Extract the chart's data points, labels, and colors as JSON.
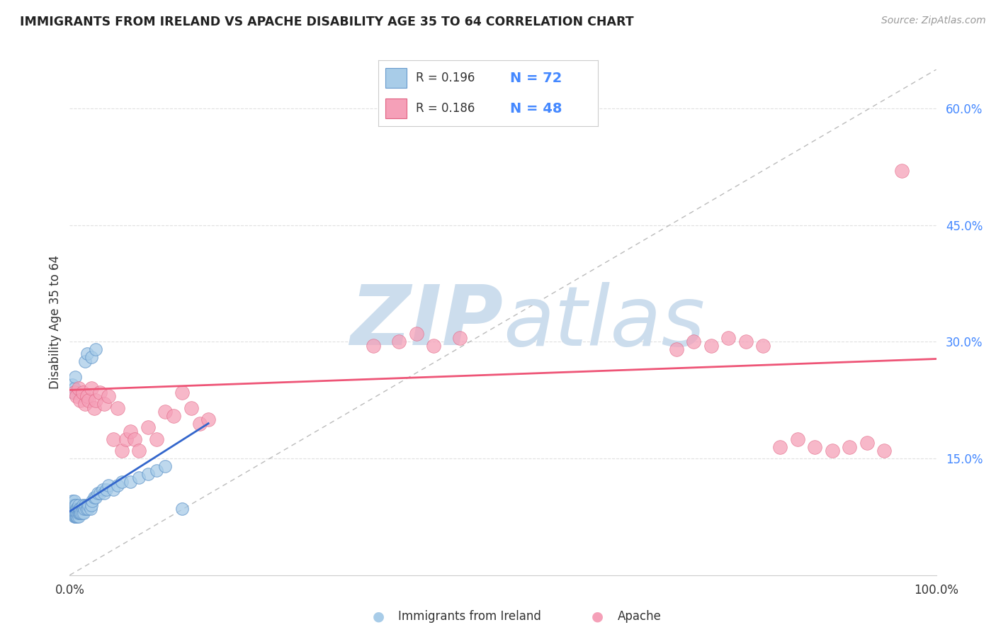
{
  "title": "IMMIGRANTS FROM IRELAND VS APACHE DISABILITY AGE 35 TO 64 CORRELATION CHART",
  "source": "Source: ZipAtlas.com",
  "ylabel": "Disability Age 35 to 64",
  "xlim": [
    0,
    1.0
  ],
  "ylim": [
    0,
    0.65
  ],
  "ytick_positions": [
    0.15,
    0.3,
    0.45,
    0.6
  ],
  "ytick_labels": [
    "15.0%",
    "30.0%",
    "45.0%",
    "60.0%"
  ],
  "background_color": "#ffffff",
  "grid_color": "#e0e0e0",
  "watermark_zip": "ZIP",
  "watermark_atlas": "atlas",
  "watermark_color": "#ccdded",
  "legend_r1": "R = 0.196",
  "legend_n1": "N = 72",
  "legend_r2": "R = 0.186",
  "legend_n2": "N = 48",
  "blue_color": "#a8cce8",
  "blue_edge_color": "#6699cc",
  "pink_color": "#f5a0b8",
  "pink_edge_color": "#e06080",
  "trendline_blue_color": "#3366cc",
  "trendline_pink_color": "#ee5577",
  "diagonal_color": "#bbbbbb",
  "blue_scatter_x": [
    0.002,
    0.003,
    0.003,
    0.004,
    0.004,
    0.004,
    0.005,
    0.005,
    0.005,
    0.005,
    0.005,
    0.006,
    0.006,
    0.006,
    0.006,
    0.007,
    0.007,
    0.007,
    0.007,
    0.008,
    0.008,
    0.008,
    0.009,
    0.009,
    0.009,
    0.01,
    0.01,
    0.01,
    0.01,
    0.011,
    0.011,
    0.012,
    0.012,
    0.013,
    0.014,
    0.015,
    0.015,
    0.016,
    0.017,
    0.018,
    0.019,
    0.02,
    0.021,
    0.022,
    0.024,
    0.025,
    0.026,
    0.028,
    0.03,
    0.032,
    0.035,
    0.038,
    0.04,
    0.042,
    0.045,
    0.05,
    0.055,
    0.06,
    0.07,
    0.08,
    0.09,
    0.1,
    0.11,
    0.13,
    0.018,
    0.02,
    0.025,
    0.03,
    0.003,
    0.004,
    0.005,
    0.006
  ],
  "blue_scatter_y": [
    0.085,
    0.09,
    0.095,
    0.08,
    0.085,
    0.09,
    0.075,
    0.08,
    0.085,
    0.09,
    0.095,
    0.075,
    0.08,
    0.085,
    0.09,
    0.075,
    0.08,
    0.085,
    0.09,
    0.075,
    0.08,
    0.085,
    0.075,
    0.08,
    0.085,
    0.075,
    0.08,
    0.085,
    0.09,
    0.08,
    0.085,
    0.08,
    0.085,
    0.08,
    0.08,
    0.085,
    0.09,
    0.08,
    0.085,
    0.09,
    0.085,
    0.09,
    0.085,
    0.09,
    0.085,
    0.09,
    0.095,
    0.1,
    0.1,
    0.105,
    0.105,
    0.11,
    0.105,
    0.11,
    0.115,
    0.11,
    0.115,
    0.12,
    0.12,
    0.125,
    0.13,
    0.135,
    0.14,
    0.085,
    0.275,
    0.285,
    0.28,
    0.29,
    0.245,
    0.235,
    0.24,
    0.255
  ],
  "pink_scatter_x": [
    0.005,
    0.008,
    0.01,
    0.012,
    0.015,
    0.018,
    0.02,
    0.022,
    0.025,
    0.028,
    0.03,
    0.035,
    0.04,
    0.045,
    0.05,
    0.055,
    0.06,
    0.065,
    0.07,
    0.075,
    0.08,
    0.09,
    0.1,
    0.11,
    0.12,
    0.13,
    0.14,
    0.15,
    0.16,
    0.35,
    0.38,
    0.4,
    0.42,
    0.45,
    0.7,
    0.72,
    0.74,
    0.76,
    0.78,
    0.8,
    0.82,
    0.84,
    0.86,
    0.88,
    0.9,
    0.92,
    0.94,
    0.96
  ],
  "pink_scatter_y": [
    0.235,
    0.23,
    0.24,
    0.225,
    0.235,
    0.22,
    0.23,
    0.225,
    0.24,
    0.215,
    0.225,
    0.235,
    0.22,
    0.23,
    0.175,
    0.215,
    0.16,
    0.175,
    0.185,
    0.175,
    0.16,
    0.19,
    0.175,
    0.21,
    0.205,
    0.235,
    0.215,
    0.195,
    0.2,
    0.295,
    0.3,
    0.31,
    0.295,
    0.305,
    0.29,
    0.3,
    0.295,
    0.305,
    0.3,
    0.295,
    0.165,
    0.175,
    0.165,
    0.16,
    0.165,
    0.17,
    0.16,
    0.52
  ],
  "blue_trend_x": [
    0.0,
    0.16
  ],
  "blue_trend_y": [
    0.082,
    0.195
  ],
  "pink_trend_x": [
    0.0,
    1.0
  ],
  "pink_trend_y": [
    0.238,
    0.278
  ],
  "bottom_legend_blue_label": "Immigrants from Ireland",
  "bottom_legend_pink_label": "Apache"
}
